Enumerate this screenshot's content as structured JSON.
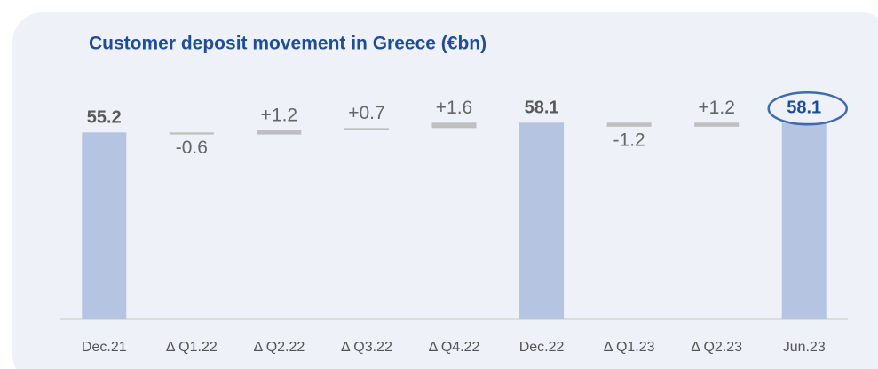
{
  "chart_data": {
    "type": "waterfall",
    "title": "Customer deposit movement in Greece (€bn)",
    "categories": [
      "Dec.21",
      "Δ Q1.22",
      "Δ Q2.22",
      "Δ Q3.22",
      "Δ Q4.22",
      "Dec.22",
      "Δ Q1.23",
      "Δ Q2.23",
      "Jun.23"
    ],
    "measure": [
      "total",
      "relative",
      "relative",
      "relative",
      "relative",
      "total",
      "relative",
      "relative",
      "total"
    ],
    "values": [
      55.2,
      -0.6,
      1.2,
      0.7,
      1.6,
      58.1,
      -1.2,
      1.2,
      58.1
    ],
    "value_labels": [
      "55.2",
      "-0.6",
      "+1.2",
      "+0.7",
      "+1.6",
      "58.1",
      "-1.2",
      "+1.2",
      "58.1"
    ],
    "total_color": "#b4c4e1",
    "delta_color": "#bfbfbf",
    "highlight_color": "#1f4e99",
    "ylim": [
      0,
      60
    ]
  }
}
